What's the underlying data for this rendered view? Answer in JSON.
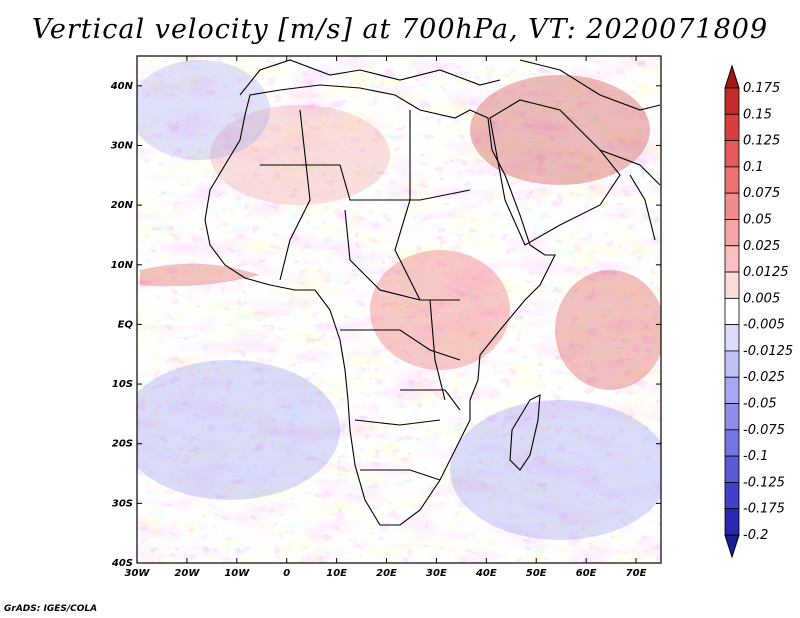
{
  "title": "Vertical velocity [m/s] at 700hPa, VT: 2020071809",
  "credit": "GrADS: IGES/COLA",
  "map": {
    "lon_range": [
      -30,
      75
    ],
    "lat_range": [
      -40,
      45
    ],
    "x_ticks": [
      {
        "lon": -30,
        "label": "30W"
      },
      {
        "lon": -20,
        "label": "20W"
      },
      {
        "lon": -10,
        "label": "10W"
      },
      {
        "lon": 0,
        "label": "0"
      },
      {
        "lon": 10,
        "label": "10E"
      },
      {
        "lon": 20,
        "label": "20E"
      },
      {
        "lon": 30,
        "label": "30E"
      },
      {
        "lon": 40,
        "label": "40E"
      },
      {
        "lon": 50,
        "label": "50E"
      },
      {
        "lon": 60,
        "label": "60E"
      },
      {
        "lon": 70,
        "label": "70E"
      }
    ],
    "y_ticks": [
      {
        "lat": 40,
        "label": "40N"
      },
      {
        "lat": 30,
        "label": "30N"
      },
      {
        "lat": 20,
        "label": "20N"
      },
      {
        "lat": 10,
        "label": "10N"
      },
      {
        "lat": 0,
        "label": "EQ"
      },
      {
        "lat": -10,
        "label": "10S"
      },
      {
        "lat": -20,
        "label": "20S"
      },
      {
        "lat": -30,
        "label": "30S"
      },
      {
        "lat": -40,
        "label": "40S"
      }
    ]
  },
  "colorbar": {
    "labels": [
      "0.175",
      "0.15",
      "0.125",
      "0.1",
      "0.075",
      "0.05",
      "0.025",
      "0.0125",
      "0.005",
      "-0.005",
      "-0.0125",
      "-0.025",
      "-0.05",
      "-0.075",
      "-0.1",
      "-0.125",
      "-0.175",
      "-0.2"
    ],
    "colors": [
      "#a01818",
      "#c42a2a",
      "#d84040",
      "#e45a5a",
      "#ec7272",
      "#f28c8c",
      "#f6a6a6",
      "#fac0c0",
      "#fddcdc",
      "#ffffff",
      "#dcdcfc",
      "#c2c2f8",
      "#a8a8f2",
      "#8e8eea",
      "#7474e2",
      "#5a5ad8",
      "#4040c8",
      "#2828b0",
      "#1c1c98"
    ]
  }
}
